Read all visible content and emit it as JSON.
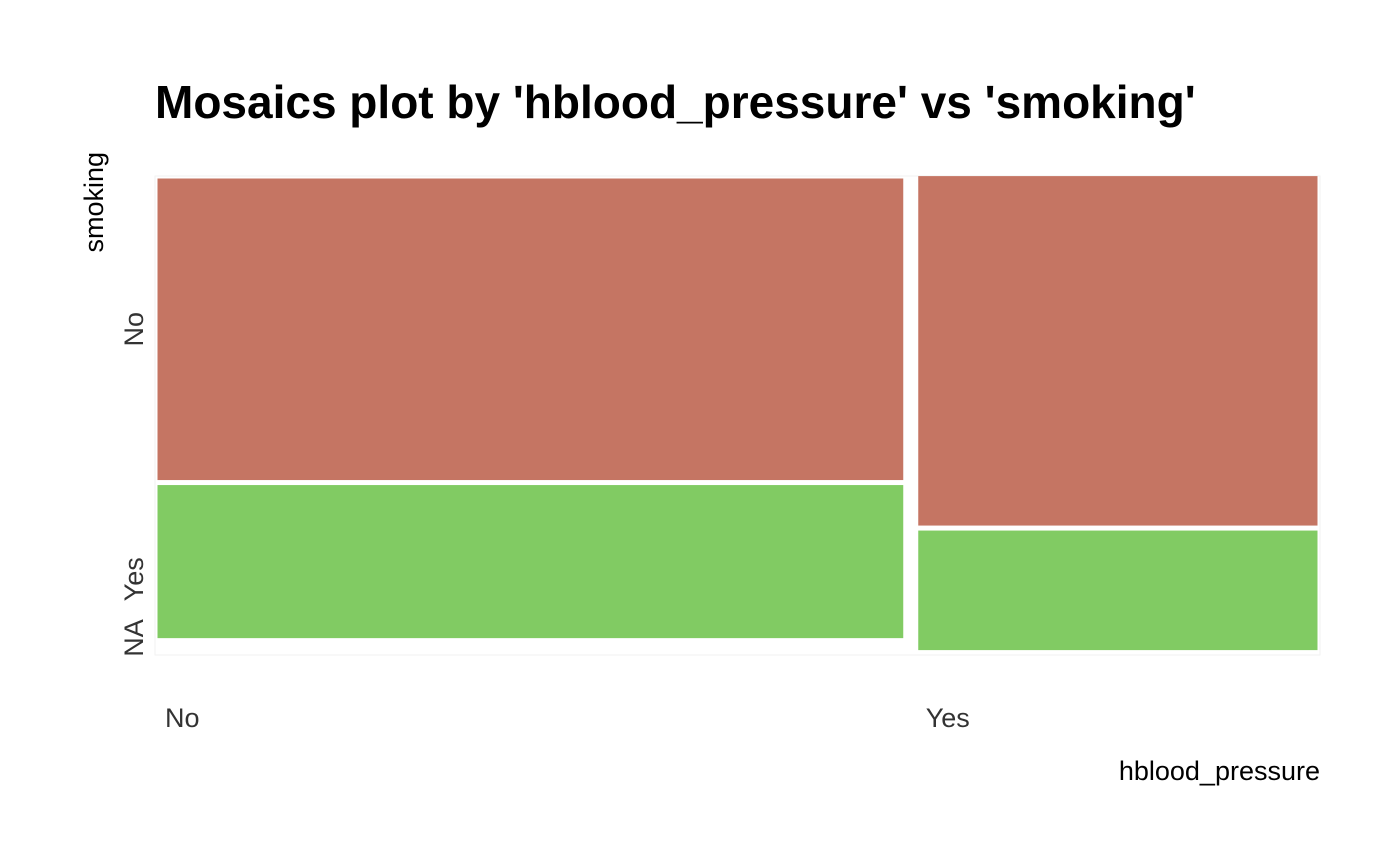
{
  "chart_data": {
    "type": "mosaic",
    "title": "Mosaics plot by 'hblood_pressure' vs 'smoking'",
    "xlabel": "hblood_pressure",
    "ylabel": "smoking",
    "x_categories": [
      "No",
      "Yes"
    ],
    "y_categories": [
      "NA",
      "Yes",
      "No"
    ],
    "x_proportions": [
      0.65,
      0.35
    ],
    "series": [
      {
        "name": "No",
        "color": "#c57563",
        "values": [
          0.64,
          0.74
        ]
      },
      {
        "name": "Yes",
        "color": "#81cb63",
        "values": [
          0.33,
          0.26
        ]
      },
      {
        "name": "NA",
        "color": "#ffffff",
        "values": [
          0.03,
          0.005
        ]
      }
    ],
    "grid": false,
    "legend": "none"
  }
}
